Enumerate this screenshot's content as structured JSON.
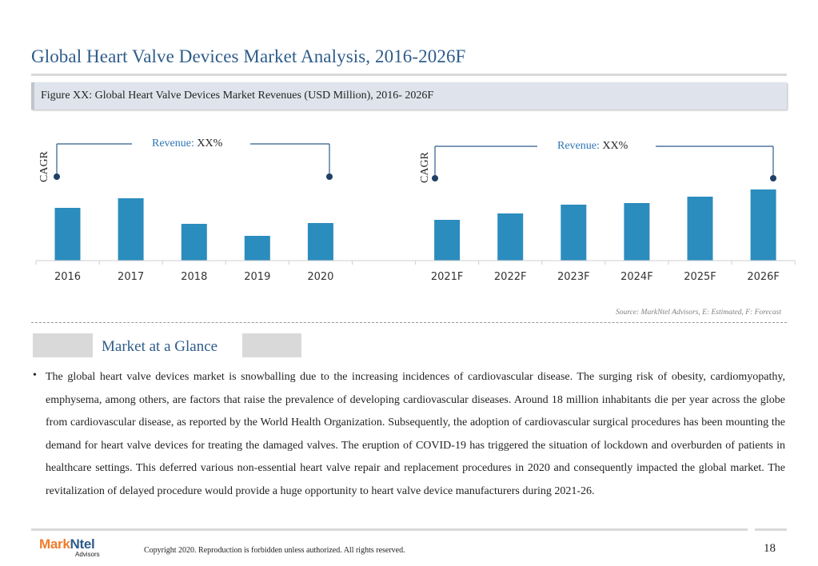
{
  "page": {
    "title": "Global Heart Valve Devices Market Analysis, 2016-2026F",
    "figure_caption": "Figure XX: Global Heart Valve Devices Market Revenues (USD Million), 2016- 2026F",
    "source_note": "Source: MarkNtel Advisors, E: Estimated, F: Forecast"
  },
  "annotations": {
    "left": {
      "cagr": "CAGR",
      "revenue_key": "Revenue:",
      "revenue_value": " XX%"
    },
    "right": {
      "cagr": "CAGR",
      "revenue_key": "Revenue:",
      "revenue_value": " XX%"
    }
  },
  "chart_data": {
    "type": "bar",
    "title": "",
    "xlabel": "",
    "ylabel": "",
    "categories": [
      "2016",
      "2017",
      "2018",
      "2019",
      "2020",
      "2021F",
      "2022F",
      "2023F",
      "2024F",
      "2025F",
      "2026F"
    ],
    "values": [
      66,
      78,
      46,
      31,
      47,
      51,
      59,
      70,
      72,
      80,
      89
    ],
    "ylim": [
      0,
      100
    ],
    "grid": false,
    "legend": "none",
    "bar_color": "#2b8cbe"
  },
  "section": {
    "heading": "Market at a Glance",
    "bullet": "•",
    "paragraph": "The global heart valve devices market is snowballing due to the increasing incidences of cardiovascular disease. The surging risk of obesity, cardiomyopathy, emphysema, among others, are factors that raise the prevalence of developing cardiovascular diseases. Around 18 million inhabitants die per year across the globe from cardiovascular disease, as reported by the World Health Organization. Subsequently, the adoption of cardiovascular surgical procedures has been mounting the demand for heart valve devices for treating the damaged valves. The eruption of COVID-19 has triggered the situation of lockdown and overburden of patients in healthcare settings. This deferred various non-essential heart valve repair and replacement procedures in 2020 and consequently impacted the global market. The revitalization of delayed procedure would provide a huge opportunity to heart valve device manufacturers during 2021-26."
  },
  "footer": {
    "logo_part1": "Mark",
    "logo_part2": "Ntel",
    "logo_sub": "Advisors",
    "copyright": "Copyright 2020. Reproduction is forbidden unless authorized. All rights reserved.",
    "page_number": "18"
  }
}
